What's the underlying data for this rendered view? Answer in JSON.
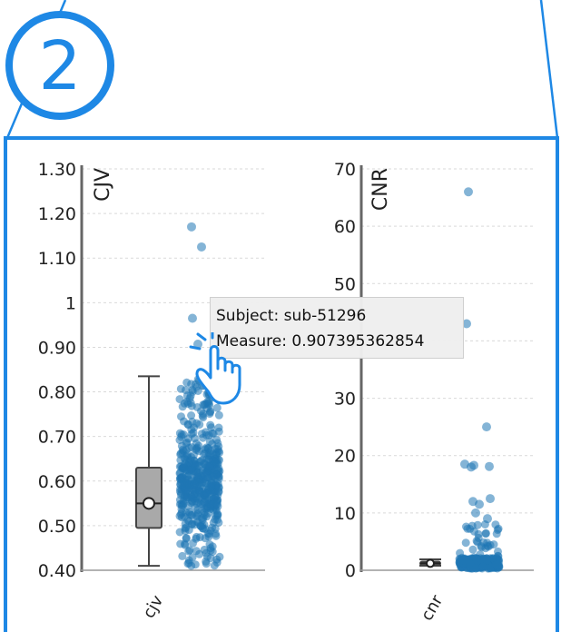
{
  "step": {
    "number": "2"
  },
  "colors": {
    "frame": "#1e88e5",
    "points": "#1f77b4",
    "box_fill": "#a9a9a9",
    "grid": "#d9d9d9"
  },
  "tooltip": {
    "subject": "Subject: sub-51296",
    "measure": "Measure: 0.907395362854"
  },
  "cursor_icon": "hand-pointer-icon",
  "chart_data": [
    {
      "type": "scatter",
      "title": "",
      "ylabel": "CJV",
      "xlabel": "",
      "categories": [
        "cjv"
      ],
      "ylim": [
        0.4,
        1.3
      ],
      "yticks": [
        "0.40",
        "0.50",
        "0.60",
        "0.70",
        "0.80",
        "0.90",
        "1",
        "1.10",
        "1.20",
        "1.30"
      ],
      "ytick_values": [
        0.4,
        0.5,
        0.6,
        0.7,
        0.8,
        0.9,
        1.0,
        1.1,
        1.2,
        1.3
      ],
      "grid": true,
      "box": {
        "min": 0.41,
        "q1": 0.495,
        "median": 0.55,
        "q3": 0.63,
        "max": 0.835,
        "mean": 0.55
      },
      "outliers": [
        1.17,
        1.125,
        0.965,
        0.907
      ],
      "bulk_range": [
        0.41,
        0.83
      ],
      "highlighted_point": 0.907395362854
    },
    {
      "type": "scatter",
      "title": "",
      "ylabel": "CNR",
      "xlabel": "",
      "categories": [
        "cnr"
      ],
      "ylim": [
        0,
        70
      ],
      "yticks": [
        "0",
        "10",
        "20",
        "30",
        "40",
        "50",
        "60",
        "70"
      ],
      "ytick_values": [
        0,
        10,
        20,
        30,
        40,
        50,
        60,
        70
      ],
      "grid": true,
      "box": {
        "min": 0.8,
        "q1": 1.0,
        "median": 1.2,
        "q3": 1.5,
        "max": 1.9,
        "mean": 1.2
      },
      "outliers": [
        66,
        43,
        25,
        18.5,
        18.3,
        18.1,
        18.0,
        12.5,
        12,
        11.5,
        10,
        9
      ],
      "bulk_range": [
        0.3,
        8
      ]
    }
  ]
}
